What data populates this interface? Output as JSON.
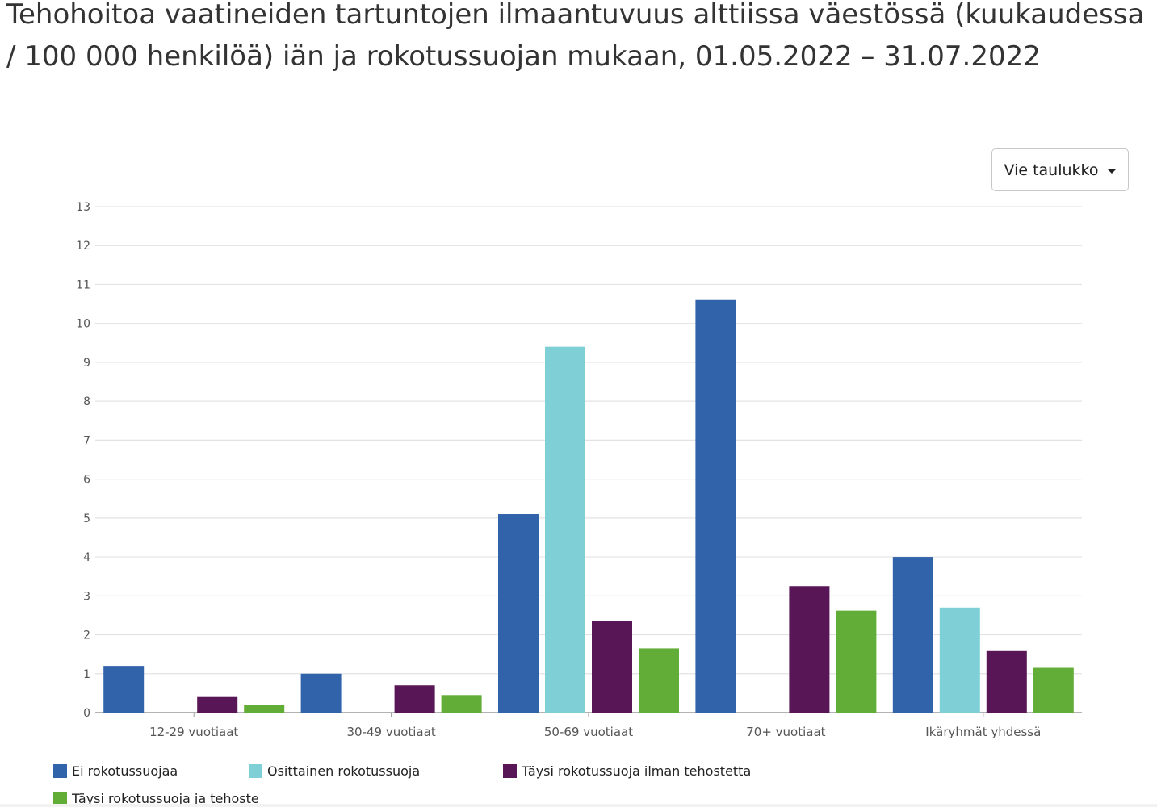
{
  "title": "Tehohoitoa vaatineiden tartuntojen ilmaantuvuus alttiissa väestössä (kuukaudessa / 100 000 henkilöä) iän ja rokotussuojan mukaan, 01.05.2022 – 31.07.2022",
  "export_button": {
    "label": "Vie taulukko",
    "icon": "caret-down-icon"
  },
  "chart_data": {
    "type": "bar",
    "categories": [
      "12-29 vuotiaat",
      "30-49 vuotiaat",
      "50-69 vuotiaat",
      "70+ vuotiaat",
      "Ikäryhmät yhdessä"
    ],
    "ylim": [
      0,
      13
    ],
    "yticks": [
      0,
      1,
      2,
      3,
      4,
      5,
      6,
      7,
      8,
      9,
      10,
      11,
      12,
      13
    ],
    "grid": true,
    "legend_position": "bottom-left",
    "series": [
      {
        "name": "Ei rokotussuojaa",
        "color": "#3163ab",
        "values": [
          1.2,
          1.0,
          5.1,
          10.6,
          4.0
        ]
      },
      {
        "name": "Osittainen rokotussuoja",
        "color": "#7fd0d6",
        "values": [
          0,
          0,
          9.4,
          0,
          2.7
        ]
      },
      {
        "name": "Täysi rokotussuoja ilman tehostetta",
        "color": "#581657",
        "values": [
          0.4,
          0.7,
          2.35,
          3.25,
          1.58
        ]
      },
      {
        "name": "Täysi rokotussuoja ja tehoste",
        "color": "#62ad37",
        "values": [
          0.2,
          0.45,
          1.65,
          2.62,
          1.15
        ]
      }
    ]
  }
}
